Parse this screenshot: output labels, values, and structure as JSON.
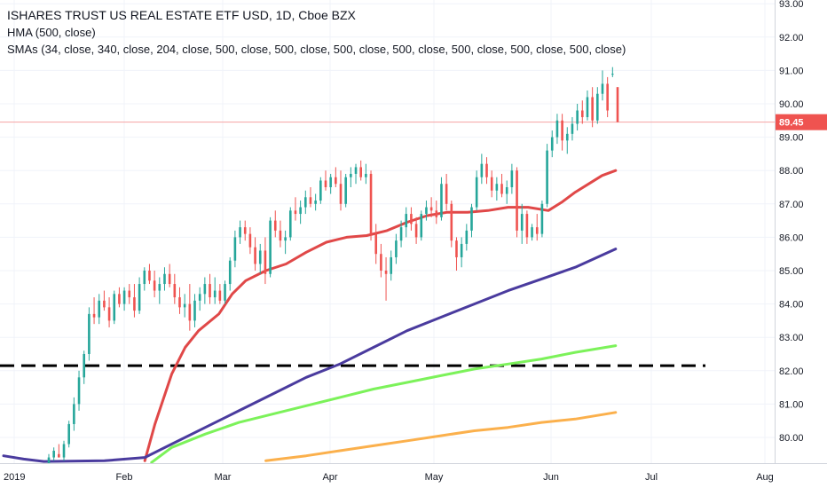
{
  "chart_data": {
    "type": "candlestick",
    "legend": {
      "title": "ISHARES TRUST US REAL ESTATE ETF USD, 1D, Cboe BZX",
      "indicator_hma": "HMA (500, close)",
      "indicator_smas": "SMAs (34, close, 340, close, 204, close, 500, close, 500, close, 500, close, 500, close, 500, close, 500, close, 500, close)"
    },
    "y_axis": {
      "ticks": [
        "93.00",
        "92.00",
        "91.00",
        "90.00",
        "89.00",
        "88.00",
        "87.00",
        "86.00",
        "85.00",
        "84.00",
        "83.00",
        "82.00",
        "81.00",
        "80.00"
      ],
      "range": [
        79.3,
        93.1
      ]
    },
    "x_axis": {
      "ticks": [
        "2019",
        "Feb",
        "Mar",
        "Apr",
        "May",
        "Jun",
        "Jul",
        "Aug"
      ]
    },
    "last_price": {
      "value": 89.45,
      "label": "89.45",
      "color": "#ef5350"
    },
    "colors": {
      "up": "#26a69a",
      "down": "#ef5350"
    },
    "horizontal_line": {
      "value": 82.15,
      "style": "dashed",
      "color": "#000000"
    },
    "candles": [
      {
        "o": 79.2,
        "h": 79.5,
        "l": 79.0,
        "c": 79.4
      },
      {
        "o": 79.4,
        "h": 79.7,
        "l": 79.3,
        "c": 79.6
      },
      {
        "o": 79.5,
        "h": 79.8,
        "l": 79.4,
        "c": 79.4
      },
      {
        "o": 79.4,
        "h": 79.9,
        "l": 79.3,
        "c": 79.8
      },
      {
        "o": 79.8,
        "h": 80.5,
        "l": 79.7,
        "c": 80.4
      },
      {
        "o": 80.4,
        "h": 81.2,
        "l": 80.2,
        "c": 81.0
      },
      {
        "o": 81.0,
        "h": 82.0,
        "l": 80.8,
        "c": 81.8
      },
      {
        "o": 81.8,
        "h": 82.6,
        "l": 81.6,
        "c": 82.5
      },
      {
        "o": 82.5,
        "h": 83.9,
        "l": 82.3,
        "c": 83.7
      },
      {
        "o": 83.7,
        "h": 84.2,
        "l": 83.4,
        "c": 83.6
      },
      {
        "o": 83.6,
        "h": 84.3,
        "l": 83.4,
        "c": 84.1
      },
      {
        "o": 84.1,
        "h": 84.4,
        "l": 83.8,
        "c": 83.9
      },
      {
        "o": 83.9,
        "h": 84.2,
        "l": 83.3,
        "c": 83.5
      },
      {
        "o": 83.5,
        "h": 84.4,
        "l": 83.4,
        "c": 84.3
      },
      {
        "o": 84.3,
        "h": 84.5,
        "l": 83.9,
        "c": 84.0
      },
      {
        "o": 84.0,
        "h": 84.5,
        "l": 83.8,
        "c": 84.4
      },
      {
        "o": 84.4,
        "h": 84.6,
        "l": 84.0,
        "c": 84.2
      },
      {
        "o": 84.2,
        "h": 84.6,
        "l": 83.6,
        "c": 83.8
      },
      {
        "o": 83.8,
        "h": 84.8,
        "l": 83.7,
        "c": 84.6
      },
      {
        "o": 84.6,
        "h": 85.1,
        "l": 84.4,
        "c": 85.0
      },
      {
        "o": 85.0,
        "h": 85.2,
        "l": 84.6,
        "c": 84.7
      },
      {
        "o": 84.7,
        "h": 85.0,
        "l": 84.2,
        "c": 84.4
      },
      {
        "o": 84.4,
        "h": 84.8,
        "l": 84.0,
        "c": 84.6
      },
      {
        "o": 84.6,
        "h": 85.1,
        "l": 84.4,
        "c": 84.9
      },
      {
        "o": 84.9,
        "h": 85.2,
        "l": 84.5,
        "c": 84.6
      },
      {
        "o": 84.6,
        "h": 84.9,
        "l": 84.0,
        "c": 84.2
      },
      {
        "o": 84.2,
        "h": 84.5,
        "l": 83.7,
        "c": 83.9
      },
      {
        "o": 83.9,
        "h": 84.3,
        "l": 83.6,
        "c": 84.0
      },
      {
        "o": 84.0,
        "h": 84.6,
        "l": 83.2,
        "c": 83.5
      },
      {
        "o": 83.5,
        "h": 84.3,
        "l": 83.3,
        "c": 84.1
      },
      {
        "o": 84.1,
        "h": 84.5,
        "l": 83.8,
        "c": 84.3
      },
      {
        "o": 84.3,
        "h": 84.8,
        "l": 84.0,
        "c": 84.6
      },
      {
        "o": 84.6,
        "h": 84.9,
        "l": 84.0,
        "c": 84.2
      },
      {
        "o": 84.2,
        "h": 84.8,
        "l": 84.0,
        "c": 84.4
      },
      {
        "o": 84.4,
        "h": 84.6,
        "l": 84.0,
        "c": 84.1
      },
      {
        "o": 84.1,
        "h": 84.7,
        "l": 84.0,
        "c": 84.6
      },
      {
        "o": 84.6,
        "h": 85.4,
        "l": 84.4,
        "c": 85.3
      },
      {
        "o": 85.3,
        "h": 86.2,
        "l": 85.1,
        "c": 86.0
      },
      {
        "o": 86.0,
        "h": 86.5,
        "l": 85.8,
        "c": 86.3
      },
      {
        "o": 86.3,
        "h": 86.5,
        "l": 85.9,
        "c": 86.1
      },
      {
        "o": 86.1,
        "h": 86.3,
        "l": 85.5,
        "c": 85.7
      },
      {
        "o": 85.7,
        "h": 86.0,
        "l": 85.0,
        "c": 85.2
      },
      {
        "o": 85.2,
        "h": 85.8,
        "l": 84.9,
        "c": 85.6
      },
      {
        "o": 85.6,
        "h": 86.0,
        "l": 84.6,
        "c": 84.9
      },
      {
        "o": 84.9,
        "h": 86.6,
        "l": 84.8,
        "c": 86.5
      },
      {
        "o": 86.5,
        "h": 86.8,
        "l": 86.0,
        "c": 86.2
      },
      {
        "o": 86.2,
        "h": 86.5,
        "l": 85.7,
        "c": 85.9
      },
      {
        "o": 85.9,
        "h": 86.2,
        "l": 85.5,
        "c": 86.0
      },
      {
        "o": 86.0,
        "h": 86.9,
        "l": 85.9,
        "c": 86.8
      },
      {
        "o": 86.8,
        "h": 87.2,
        "l": 86.5,
        "c": 86.7
      },
      {
        "o": 86.7,
        "h": 87.1,
        "l": 86.4,
        "c": 86.9
      },
      {
        "o": 86.9,
        "h": 87.4,
        "l": 86.7,
        "c": 87.2
      },
      {
        "o": 87.2,
        "h": 87.5,
        "l": 86.9,
        "c": 87.0
      },
      {
        "o": 87.0,
        "h": 87.3,
        "l": 86.8,
        "c": 87.1
      },
      {
        "o": 87.1,
        "h": 87.8,
        "l": 87.0,
        "c": 87.7
      },
      {
        "o": 87.7,
        "h": 88.0,
        "l": 87.4,
        "c": 87.5
      },
      {
        "o": 87.5,
        "h": 87.9,
        "l": 87.3,
        "c": 87.8
      },
      {
        "o": 87.8,
        "h": 88.1,
        "l": 87.5,
        "c": 87.6
      },
      {
        "o": 87.6,
        "h": 88.0,
        "l": 86.8,
        "c": 87.0
      },
      {
        "o": 87.0,
        "h": 87.9,
        "l": 86.9,
        "c": 87.8
      },
      {
        "o": 87.8,
        "h": 88.1,
        "l": 87.5,
        "c": 87.9
      },
      {
        "o": 87.9,
        "h": 88.2,
        "l": 87.6,
        "c": 88.1
      },
      {
        "o": 88.1,
        "h": 88.3,
        "l": 87.7,
        "c": 87.8
      },
      {
        "o": 87.8,
        "h": 88.2,
        "l": 87.6,
        "c": 87.9
      },
      {
        "o": 87.9,
        "h": 88.0,
        "l": 85.9,
        "c": 86.1
      },
      {
        "o": 86.1,
        "h": 86.4,
        "l": 85.2,
        "c": 85.5
      },
      {
        "o": 85.5,
        "h": 85.8,
        "l": 84.8,
        "c": 85.0
      },
      {
        "o": 85.0,
        "h": 85.4,
        "l": 84.1,
        "c": 84.9
      },
      {
        "o": 84.9,
        "h": 85.6,
        "l": 84.7,
        "c": 85.4
      },
      {
        "o": 85.4,
        "h": 86.1,
        "l": 85.2,
        "c": 85.9
      },
      {
        "o": 85.9,
        "h": 86.5,
        "l": 85.7,
        "c": 86.3
      },
      {
        "o": 86.3,
        "h": 86.9,
        "l": 86.0,
        "c": 86.7
      },
      {
        "o": 86.7,
        "h": 86.9,
        "l": 86.2,
        "c": 86.4
      },
      {
        "o": 86.4,
        "h": 86.6,
        "l": 85.8,
        "c": 86.0
      },
      {
        "o": 86.0,
        "h": 86.8,
        "l": 85.9,
        "c": 86.7
      },
      {
        "o": 86.7,
        "h": 87.1,
        "l": 86.5,
        "c": 86.9
      },
      {
        "o": 86.9,
        "h": 87.2,
        "l": 86.6,
        "c": 86.8
      },
      {
        "o": 86.8,
        "h": 87.1,
        "l": 86.4,
        "c": 86.6
      },
      {
        "o": 86.6,
        "h": 87.8,
        "l": 86.5,
        "c": 87.6
      },
      {
        "o": 87.6,
        "h": 87.9,
        "l": 86.8,
        "c": 87.0
      },
      {
        "o": 87.0,
        "h": 87.1,
        "l": 85.7,
        "c": 85.9
      },
      {
        "o": 85.9,
        "h": 86.0,
        "l": 85.0,
        "c": 85.4
      },
      {
        "o": 85.4,
        "h": 86.0,
        "l": 85.1,
        "c": 85.8
      },
      {
        "o": 85.8,
        "h": 86.4,
        "l": 85.6,
        "c": 86.2
      },
      {
        "o": 86.2,
        "h": 87.0,
        "l": 86.0,
        "c": 86.9
      },
      {
        "o": 86.9,
        "h": 88.0,
        "l": 86.8,
        "c": 87.8
      },
      {
        "o": 87.8,
        "h": 88.5,
        "l": 87.6,
        "c": 88.2
      },
      {
        "o": 88.2,
        "h": 88.4,
        "l": 87.6,
        "c": 87.8
      },
      {
        "o": 87.8,
        "h": 88.0,
        "l": 87.2,
        "c": 87.4
      },
      {
        "o": 87.4,
        "h": 87.8,
        "l": 87.1,
        "c": 87.6
      },
      {
        "o": 87.6,
        "h": 87.9,
        "l": 87.2,
        "c": 87.3
      },
      {
        "o": 87.3,
        "h": 87.7,
        "l": 87.0,
        "c": 87.5
      },
      {
        "o": 87.5,
        "h": 88.2,
        "l": 87.3,
        "c": 88.0
      },
      {
        "o": 88.0,
        "h": 88.1,
        "l": 86.0,
        "c": 86.2
      },
      {
        "o": 86.2,
        "h": 87.0,
        "l": 85.8,
        "c": 86.7
      },
      {
        "o": 86.7,
        "h": 86.8,
        "l": 85.8,
        "c": 86.0
      },
      {
        "o": 86.0,
        "h": 86.4,
        "l": 85.9,
        "c": 86.3
      },
      {
        "o": 86.3,
        "h": 86.7,
        "l": 85.9,
        "c": 86.1
      },
      {
        "o": 86.1,
        "h": 87.1,
        "l": 86.0,
        "c": 87.0
      },
      {
        "o": 87.0,
        "h": 88.8,
        "l": 86.9,
        "c": 88.6
      },
      {
        "o": 88.6,
        "h": 89.2,
        "l": 88.4,
        "c": 89.0
      },
      {
        "o": 89.0,
        "h": 89.7,
        "l": 88.8,
        "c": 89.5
      },
      {
        "o": 89.5,
        "h": 89.7,
        "l": 88.6,
        "c": 88.9
      },
      {
        "o": 88.9,
        "h": 89.3,
        "l": 88.5,
        "c": 89.1
      },
      {
        "o": 89.1,
        "h": 89.6,
        "l": 88.9,
        "c": 89.4
      },
      {
        "o": 89.4,
        "h": 90.0,
        "l": 89.2,
        "c": 89.8
      },
      {
        "o": 89.8,
        "h": 90.1,
        "l": 89.4,
        "c": 89.6
      },
      {
        "o": 89.6,
        "h": 90.4,
        "l": 89.5,
        "c": 90.2
      },
      {
        "o": 90.2,
        "h": 90.5,
        "l": 89.3,
        "c": 89.5
      },
      {
        "o": 89.5,
        "h": 90.5,
        "l": 89.4,
        "c": 90.3
      },
      {
        "o": 90.3,
        "h": 91.0,
        "l": 90.1,
        "c": 90.6
      },
      {
        "o": 90.6,
        "h": 90.8,
        "l": 89.6,
        "c": 89.8
      },
      {
        "o": 90.9,
        "h": 91.1,
        "l": 90.8,
        "c": 90.9
      },
      {
        "o": 90.5,
        "h": 90.5,
        "l": 89.45,
        "c": 89.45
      }
    ],
    "series": [
      {
        "color": "#e04848",
        "values": [
          {
            "i": 42,
            "v": 79.3
          },
          {
            "i": 45,
            "v": 80.4
          },
          {
            "i": 50,
            "v": 81.9
          },
          {
            "i": 54,
            "v": 82.7
          },
          {
            "i": 58,
            "v": 83.2
          },
          {
            "i": 64,
            "v": 83.7
          },
          {
            "i": 68,
            "v": 84.3
          },
          {
            "i": 72,
            "v": 84.7
          },
          {
            "i": 78,
            "v": 85.0
          },
          {
            "i": 84,
            "v": 85.2
          },
          {
            "i": 90,
            "v": 85.55
          },
          {
            "i": 96,
            "v": 85.85
          },
          {
            "i": 102,
            "v": 86.0
          },
          {
            "i": 108,
            "v": 86.05
          },
          {
            "i": 114,
            "v": 86.2
          },
          {
            "i": 120,
            "v": 86.45
          },
          {
            "i": 126,
            "v": 86.65
          },
          {
            "i": 132,
            "v": 86.75
          },
          {
            "i": 138,
            "v": 86.75
          },
          {
            "i": 144,
            "v": 86.8
          },
          {
            "i": 150,
            "v": 86.9
          },
          {
            "i": 156,
            "v": 86.9
          },
          {
            "i": 162,
            "v": 86.8
          },
          {
            "i": 166,
            "v": 87.05
          },
          {
            "i": 170,
            "v": 87.35
          },
          {
            "i": 174,
            "v": 87.6
          },
          {
            "i": 178,
            "v": 87.85
          },
          {
            "i": 182,
            "v": 88.0
          }
        ]
      },
      {
        "color": "#4a3b9e",
        "values": [
          {
            "i": 0,
            "v": 79.45
          },
          {
            "i": 6,
            "v": 79.35
          },
          {
            "i": 12,
            "v": 79.28
          },
          {
            "i": 30,
            "v": 79.3
          },
          {
            "i": 42,
            "v": 79.4
          },
          {
            "i": 50,
            "v": 79.8
          },
          {
            "i": 60,
            "v": 80.3
          },
          {
            "i": 70,
            "v": 80.8
          },
          {
            "i": 80,
            "v": 81.3
          },
          {
            "i": 90,
            "v": 81.8
          },
          {
            "i": 100,
            "v": 82.2
          },
          {
            "i": 110,
            "v": 82.7
          },
          {
            "i": 120,
            "v": 83.2
          },
          {
            "i": 130,
            "v": 83.6
          },
          {
            "i": 140,
            "v": 84.0
          },
          {
            "i": 150,
            "v": 84.4
          },
          {
            "i": 160,
            "v": 84.75
          },
          {
            "i": 170,
            "v": 85.1
          },
          {
            "i": 182,
            "v": 85.65
          }
        ]
      },
      {
        "color": "#7cf25a",
        "values": [
          {
            "i": 44,
            "v": 79.25
          },
          {
            "i": 50,
            "v": 79.7
          },
          {
            "i": 60,
            "v": 80.1
          },
          {
            "i": 70,
            "v": 80.45
          },
          {
            "i": 80,
            "v": 80.7
          },
          {
            "i": 90,
            "v": 80.95
          },
          {
            "i": 100,
            "v": 81.2
          },
          {
            "i": 110,
            "v": 81.45
          },
          {
            "i": 120,
            "v": 81.65
          },
          {
            "i": 130,
            "v": 81.85
          },
          {
            "i": 140,
            "v": 82.05
          },
          {
            "i": 150,
            "v": 82.2
          },
          {
            "i": 160,
            "v": 82.35
          },
          {
            "i": 170,
            "v": 82.55
          },
          {
            "i": 182,
            "v": 82.75
          }
        ]
      },
      {
        "color": "#fbb04c",
        "values": [
          {
            "i": 78,
            "v": 79.3
          },
          {
            "i": 90,
            "v": 79.45
          },
          {
            "i": 100,
            "v": 79.6
          },
          {
            "i": 110,
            "v": 79.75
          },
          {
            "i": 120,
            "v": 79.9
          },
          {
            "i": 130,
            "v": 80.05
          },
          {
            "i": 140,
            "v": 80.2
          },
          {
            "i": 150,
            "v": 80.3
          },
          {
            "i": 160,
            "v": 80.45
          },
          {
            "i": 170,
            "v": 80.55
          },
          {
            "i": 182,
            "v": 80.75
          }
        ]
      }
    ]
  }
}
